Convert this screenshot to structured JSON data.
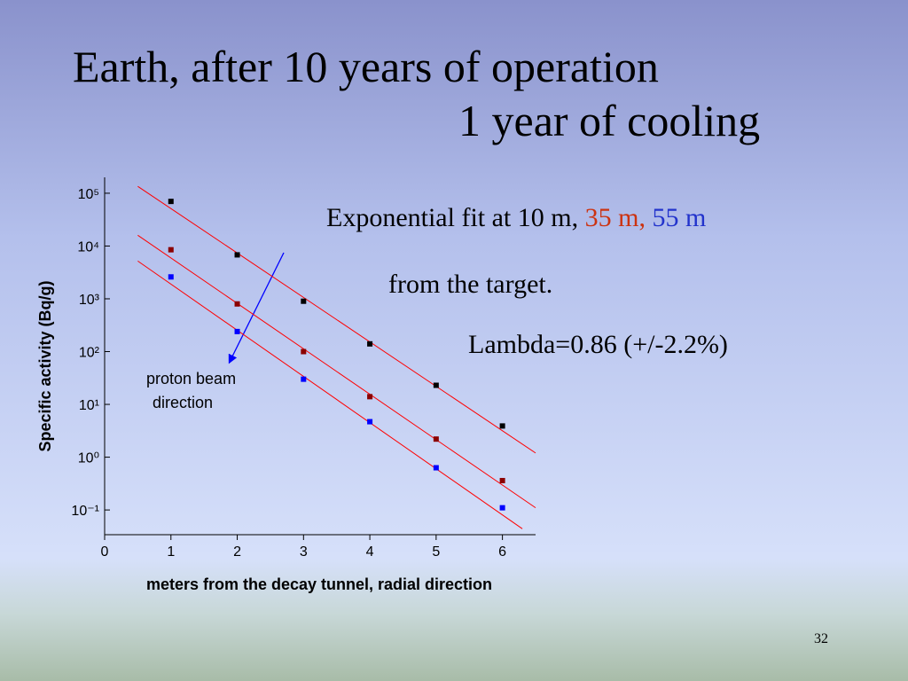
{
  "slide": {
    "title": [
      "Earth, after 10 years of operation",
      "1 year of cooling"
    ],
    "fit_text": [
      {
        "text": "Exponential fit at  10 m,",
        "color": "#000000"
      },
      {
        "text": "35 m,",
        "color": "#cc3311"
      },
      {
        "text": "55 m",
        "color": "#2233cc"
      }
    ],
    "notes": [
      "from the target.",
      "Lambda=0.86 (+/-2.2%)"
    ],
    "page_number": "32"
  },
  "chart_data": {
    "type": "scatter",
    "x_label": "meters from the decay tunnel, radial direction",
    "y_label": "Specific activity (Bq/g)",
    "annotation": [
      "proton beam",
      "direction"
    ],
    "log_y": true,
    "xlim": [
      0,
      6.5
    ],
    "xticks": [
      0,
      1,
      2,
      3,
      4,
      5,
      6
    ],
    "ylim": [
      0.034,
      200000
    ],
    "yticks": [
      {
        "value": 0.1,
        "label": "10⁻¹"
      },
      {
        "value": 1,
        "label": "10⁰"
      },
      {
        "value": 10,
        "label": "10¹"
      },
      {
        "value": 100,
        "label": "10²"
      },
      {
        "value": 1000,
        "label": "10³"
      },
      {
        "value": 10000,
        "label": "10⁴"
      },
      {
        "value": 100000,
        "label": "10⁵"
      }
    ],
    "series": [
      {
        "color": "#000000",
        "x": [
          1,
          2,
          3,
          4,
          5,
          6
        ],
        "values": [
          70000,
          6800,
          900,
          140,
          23,
          3.9
        ]
      },
      {
        "color": "#8b0000",
        "x": [
          1,
          2,
          3,
          4,
          5,
          6
        ],
        "values": [
          8500,
          800,
          100,
          14,
          2.2,
          0.36
        ]
      },
      {
        "color": "#0000ff",
        "x": [
          1,
          2,
          3,
          4,
          5,
          6
        ],
        "values": [
          2600,
          240,
          30,
          4.7,
          0.63,
          0.11
        ]
      }
    ],
    "fit_lines": [
      {
        "color": "#ff0000",
        "x": [
          0.5,
          6.5
        ],
        "values": [
          135000,
          1.2
        ]
      },
      {
        "color": "#ff0000",
        "x": [
          0.5,
          6.5
        ],
        "values": [
          16000,
          0.11
        ]
      },
      {
        "color": "#ff0000",
        "x": [
          0.5,
          6.3
        ],
        "values": [
          5200,
          0.044
        ]
      }
    ]
  }
}
